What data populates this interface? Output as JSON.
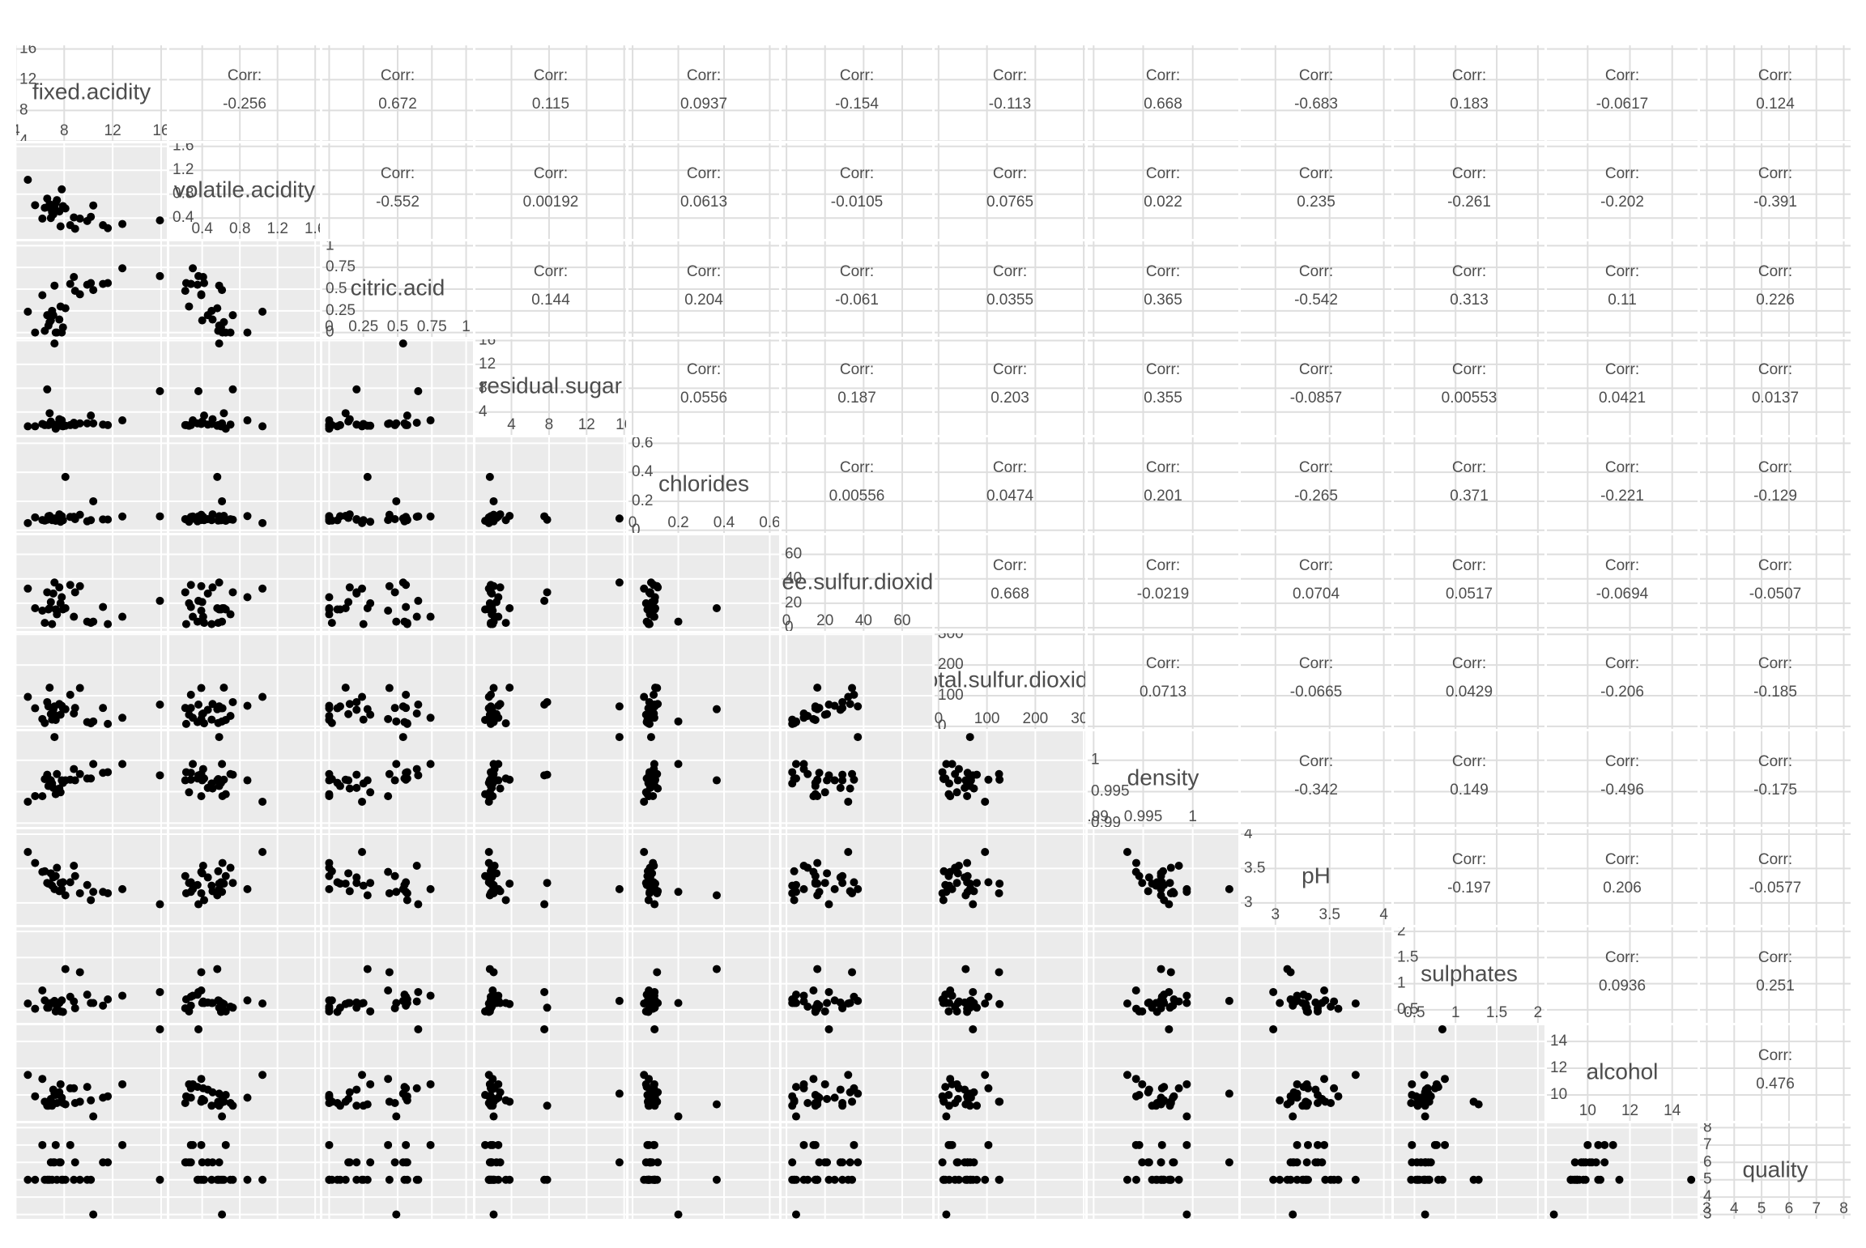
{
  "chart_data": {
    "type": "scatter_matrix",
    "corr_label": "Corr:",
    "point_color": "#000000",
    "variables": [
      {
        "name": "fixed.acidity",
        "lim": [
          4.04,
          16.47
        ],
        "ticks": [
          4,
          8,
          12,
          16
        ]
      },
      {
        "name": "volatile.acidity",
        "lim": [
          0.05,
          1.65
        ],
        "ticks": [
          0.4,
          0.8,
          1.2,
          1.6
        ]
      },
      {
        "name": "citric.acid",
        "lim": [
          -0.05,
          1.05
        ],
        "ticks": [
          0,
          0.25,
          0.5,
          0.75,
          1
        ]
      },
      {
        "name": "residual.sugar",
        "lim": [
          0.16,
          16.2
        ],
        "ticks": [
          4,
          8,
          12,
          16
        ]
      },
      {
        "name": "chlorides",
        "lim": [
          -0.018,
          0.641
        ],
        "ticks": [
          0,
          0.2,
          0.4,
          0.6
        ]
      },
      {
        "name": "free.sulfur.dioxide",
        "lim": [
          -2.55,
          75.55
        ],
        "ticks": [
          0,
          20,
          40,
          60
        ]
      },
      {
        "name": "total.sulfur.dioxide",
        "lim": [
          -8.15,
          303.15
        ],
        "ticks": [
          0,
          100,
          200,
          300
        ]
      },
      {
        "name": "density",
        "lim": [
          0.9894,
          1.0046
        ],
        "ticks": [
          0.99,
          0.995,
          1
        ]
      },
      {
        "name": "pH",
        "lim": [
          2.68,
          4.07
        ],
        "ticks": [
          3,
          3.5,
          4
        ]
      },
      {
        "name": "sulphates",
        "lim": [
          0.25,
          2.08
        ],
        "ticks": [
          0.5,
          1,
          1.5,
          2
        ]
      },
      {
        "name": "alcohol",
        "lim": [
          8.07,
          15.2
        ],
        "ticks": [
          10,
          12,
          14
        ]
      },
      {
        "name": "quality",
        "lim": [
          2.75,
          8.25
        ],
        "ticks": [
          3,
          4,
          5,
          6,
          7,
          8
        ]
      }
    ],
    "correlations": [
      [
        -0.256,
        0.672,
        0.115,
        0.0937,
        -0.154,
        -0.113,
        0.668,
        -0.683,
        0.183,
        -0.0617,
        0.124
      ],
      [
        -0.552,
        0.00192,
        0.0613,
        -0.0105,
        0.0765,
        0.022,
        0.235,
        -0.261,
        -0.202,
        -0.391
      ],
      [
        0.144,
        0.204,
        -0.061,
        0.0355,
        0.365,
        -0.542,
        0.313,
        0.11,
        0.226
      ],
      [
        0.0556,
        0.187,
        0.203,
        0.355,
        -0.0857,
        0.00553,
        0.0421,
        0.0137
      ],
      [
        0.00556,
        0.0474,
        0.201,
        -0.265,
        0.371,
        -0.221,
        -0.129
      ],
      [
        0.668,
        -0.0219,
        0.0704,
        0.0517,
        -0.0694,
        -0.0507
      ],
      [
        0.0713,
        -0.0665,
        0.0429,
        -0.206,
        -0.185
      ],
      [
        -0.342,
        0.149,
        -0.496,
        -0.175
      ],
      [
        -0.197,
        0.206,
        -0.0577
      ],
      [
        0.0936,
        0.251
      ],
      [
        0.476
      ]
    ],
    "observations": [
      [
        7.4,
        0.7,
        0,
        1.9,
        0.076,
        11,
        34,
        0.9978,
        3.51,
        0.56,
        9.4,
        5
      ],
      [
        7.8,
        0.88,
        0,
        2.6,
        0.098,
        25,
        67,
        0.9968,
        3.2,
        0.68,
        9.8,
        5
      ],
      [
        11.2,
        0.28,
        0.56,
        1.9,
        0.075,
        17,
        60,
        0.998,
        3.16,
        0.58,
        9.8,
        6
      ],
      [
        7.3,
        0.65,
        0,
        1.2,
        0.065,
        15,
        21,
        0.9946,
        3.39,
        0.47,
        10,
        7
      ],
      [
        8.1,
        0.56,
        0.28,
        1.7,
        0.368,
        16,
        56,
        0.9968,
        3.11,
        1.28,
        9.3,
        5
      ],
      [
        10.2,
        0.42,
        0.57,
        3.4,
        0.07,
        4,
        10,
        0.9971,
        3.04,
        0.63,
        9.6,
        5
      ],
      [
        6.7,
        0.58,
        0.08,
        1.8,
        0.097,
        15,
        65,
        0.9959,
        3.28,
        0.54,
        9.2,
        5
      ],
      [
        8.9,
        0.22,
        0.48,
        1.8,
        0.077,
        29,
        60,
        0.9968,
        3.39,
        0.53,
        9.4,
        6
      ],
      [
        12.8,
        0.3,
        0.74,
        2.6,
        0.095,
        9,
        28,
        0.9994,
        3.2,
        0.77,
        10.8,
        7
      ],
      [
        5.6,
        0.615,
        0,
        1.6,
        0.089,
        16,
        59,
        0.9943,
        3.58,
        0.52,
        9.9,
        5
      ],
      [
        9.3,
        0.39,
        0.44,
        2.1,
        0.107,
        34,
        125,
        0.9978,
        3.14,
        1.22,
        9.5,
        5
      ],
      [
        7,
        0.5,
        0.25,
        2,
        0.07,
        3,
        22,
        0.9963,
        3.25,
        0.63,
        9.2,
        5
      ],
      [
        15.9,
        0.36,
        0.65,
        7.5,
        0.096,
        22,
        71,
        0.9976,
        2.98,
        0.84,
        14.9,
        5
      ],
      [
        6.2,
        0.39,
        0.43,
        2,
        0.071,
        14,
        24,
        0.99428,
        3.45,
        0.87,
        11.2,
        7
      ],
      [
        8.5,
        0.28,
        0.56,
        1.8,
        0.092,
        35,
        103,
        0.9969,
        3.3,
        0.75,
        10.5,
        7
      ],
      [
        7.9,
        0.6,
        0.06,
        1.6,
        0.069,
        15,
        59,
        0.9964,
        3.3,
        0.46,
        9.4,
        5
      ],
      [
        6.8,
        0.63,
        0.12,
        3.8,
        0.099,
        16,
        126,
        0.9969,
        3.28,
        0.61,
        9.5,
        5
      ],
      [
        10.4,
        0.61,
        0.49,
        2.1,
        0.2,
        5,
        16,
        0.9994,
        3.16,
        0.63,
        8.4,
        3
      ],
      [
        7.2,
        0.58,
        0.54,
        15.5,
        0.081,
        37,
        65,
        1.00369,
        3.2,
        0.67,
        10.1,
        6
      ],
      [
        5,
        1.04,
        0.24,
        1.6,
        0.05,
        32,
        96,
        0.9934,
        3.74,
        0.62,
        11.5,
        5
      ],
      [
        6.4,
        0.57,
        0.02,
        1.8,
        0.067,
        4,
        11,
        0.997,
        3.46,
        0.68,
        9.5,
        5
      ],
      [
        9.9,
        0.35,
        0.55,
        2.1,
        0.062,
        5,
        14,
        0.9971,
        3.26,
        0.79,
        10.6,
        5
      ],
      [
        11.6,
        0.23,
        0.57,
        1.8,
        0.074,
        3,
        8,
        0.9981,
        3.14,
        0.7,
        9.9,
        6
      ],
      [
        7.7,
        0.26,
        0.3,
        1.7,
        0.059,
        20,
        38,
        0.9949,
        3.29,
        0.47,
        10.8,
        6
      ],
      [
        6.6,
        0.725,
        0.2,
        7.8,
        0.073,
        29,
        79,
        0.9977,
        3.29,
        0.54,
        9.2,
        5
      ],
      [
        7.1,
        0.46,
        0.2,
        1.9,
        0.077,
        28,
        54,
        0.9956,
        3.37,
        0.64,
        10.4,
        6
      ],
      [
        8.8,
        0.41,
        0.64,
        2.2,
        0.093,
        9,
        42,
        0.9986,
        3.54,
        0.66,
        10.5,
        5
      ],
      [
        6.9,
        0.4,
        0.14,
        2.4,
        0.085,
        21,
        40,
        0.9968,
        3.43,
        0.63,
        9.7,
        6
      ],
      [
        7.6,
        0.51,
        0.15,
        2.8,
        0.11,
        33,
        73,
        0.9955,
        3.17,
        0.63,
        10.2,
        6
      ]
    ]
  }
}
